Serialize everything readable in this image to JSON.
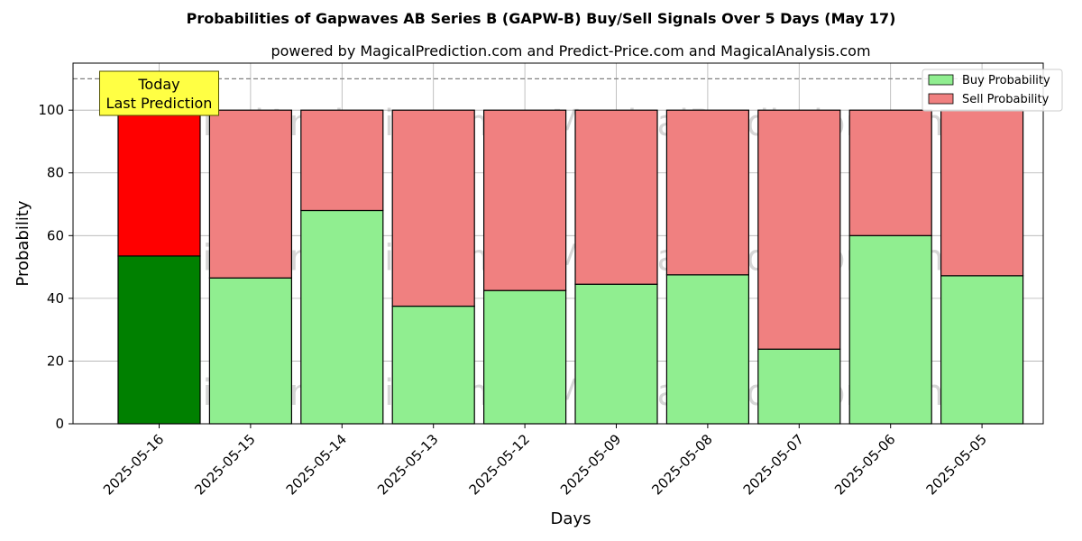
{
  "chart_data": {
    "type": "bar",
    "title": "Probabilities of Gapwaves AB Series B (GAPW-B) Buy/Sell Signals Over 5 Days (May 17)",
    "subtitle": "powered by MagicalPrediction.com and Predict-Price.com and MagicalAnalysis.com",
    "xlabel": "Days",
    "ylabel": "Probability",
    "ylim": [
      0,
      115
    ],
    "yticks": [
      0,
      20,
      40,
      60,
      80,
      100
    ],
    "grid": true,
    "legend_position": "top-right",
    "categories": [
      "2025-05-16",
      "2025-05-15",
      "2025-05-14",
      "2025-05-13",
      "2025-05-12",
      "2025-05-09",
      "2025-05-08",
      "2025-05-07",
      "2025-05-06",
      "2025-05-05"
    ],
    "series": [
      {
        "name": "Buy Probability",
        "color": "#90ee90",
        "highlight_color": "#008000",
        "values": [
          53.5,
          46.5,
          68.0,
          37.5,
          42.5,
          44.5,
          47.5,
          23.8,
          60.0,
          47.2
        ]
      },
      {
        "name": "Sell Probability",
        "color": "#f08080",
        "highlight_color": "#ff0000",
        "values": [
          46.5,
          53.5,
          32.0,
          62.5,
          57.5,
          55.5,
          52.5,
          76.2,
          40.0,
          52.8
        ]
      }
    ],
    "reference_line": 110,
    "annotation": {
      "lines": [
        "Today",
        "Last Prediction"
      ],
      "category_index": 0
    },
    "watermarks": [
      "MagicalAnalysis.com",
      "MagicalPrediction.com"
    ]
  }
}
